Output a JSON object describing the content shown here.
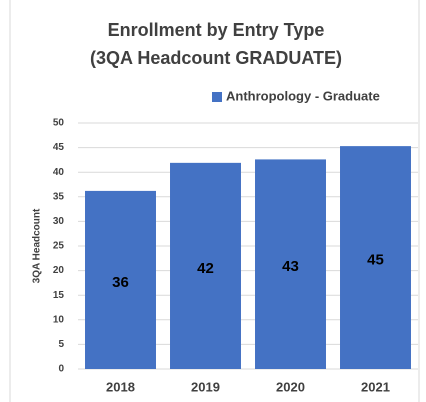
{
  "chart_data": {
    "type": "bar",
    "title": [
      "Enrollment by Entry Type",
      "(3QA Headcount GRADUATE)"
    ],
    "y_label": "3QA Headcount",
    "categories": [
      "2018",
      "2019",
      "2020",
      "2021"
    ],
    "series": [
      {
        "name": "Anthropology - Graduate",
        "color": "#4472c4",
        "values": [
          36.2,
          41.9,
          42.6,
          45.3
        ],
        "value_labels": [
          "36",
          "42",
          "43",
          "45"
        ]
      }
    ],
    "ylim": [
      0,
      50
    ],
    "yticks": [
      0,
      5,
      10,
      15,
      20,
      25,
      30,
      35,
      40,
      45,
      50
    ],
    "grid": true,
    "legend": "top"
  }
}
